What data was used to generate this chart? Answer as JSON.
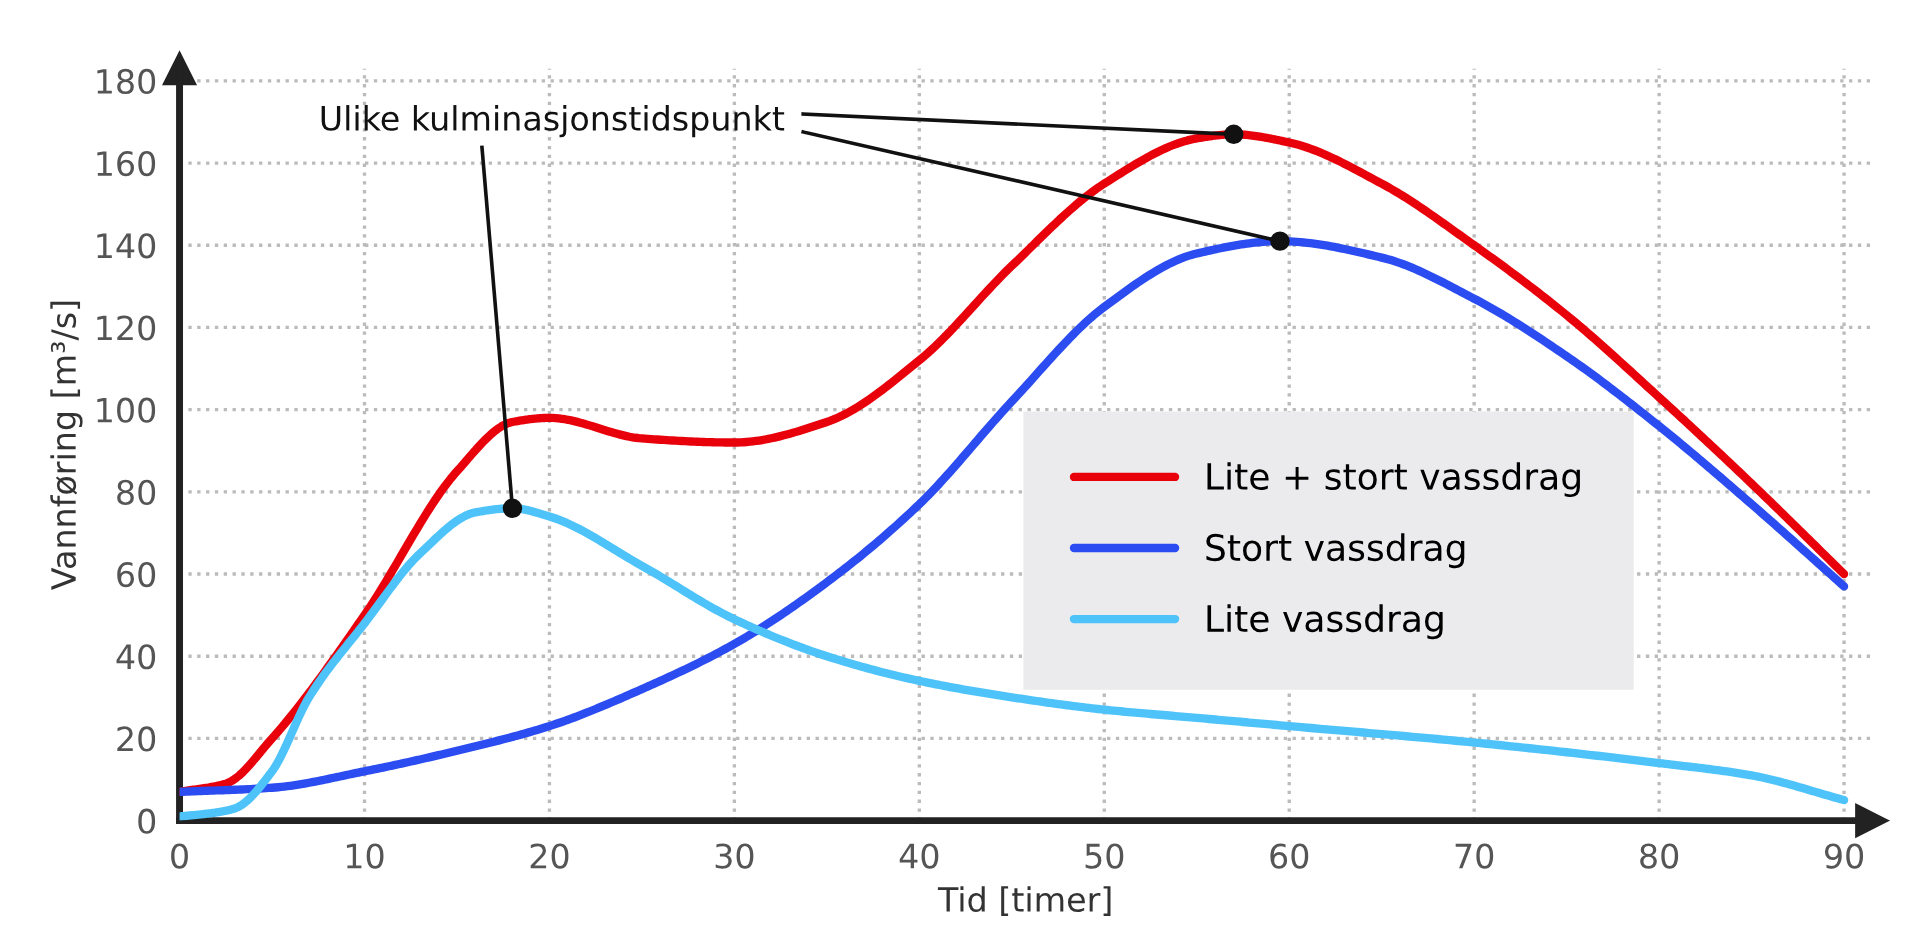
{
  "chart_data": {
    "type": "line",
    "xlabel": "Tid [timer]",
    "ylabel": "Vannføring [m³/s]",
    "xlim": [
      0,
      91.5
    ],
    "ylim": [
      0,
      183
    ],
    "xticks": [
      0,
      10,
      20,
      30,
      40,
      50,
      60,
      70,
      80,
      90
    ],
    "yticks": [
      0,
      20,
      40,
      60,
      80,
      100,
      120,
      140,
      160,
      180
    ],
    "grid": true,
    "legend": "right",
    "line_style": "solid",
    "marker": "none",
    "annotations": [
      {
        "text": "Ulike kulminasjonstidspunkt",
        "x": 18,
        "y": 76
      }
    ],
    "series": [
      {
        "name": "Lite + stort vassdrag",
        "color": "#e8000b",
        "x": [
          0,
          2.5,
          5,
          10,
          15,
          18,
          20,
          25,
          30,
          35,
          40,
          45,
          50,
          55,
          57,
          60,
          65,
          70,
          75,
          80,
          85,
          90
        ],
        "values": [
          7,
          9,
          20,
          50,
          85,
          97,
          98,
          93,
          92,
          97,
          112,
          135,
          155,
          166,
          167,
          165,
          155,
          140,
          123,
          103,
          82,
          60
        ]
      },
      {
        "name": "Stort vassdrag",
        "color": "#2b4cf0",
        "x": [
          0,
          5,
          10,
          15,
          20,
          25,
          30,
          35,
          40,
          45,
          50,
          55,
          59.5,
          65,
          70,
          75,
          80,
          85,
          90
        ],
        "values": [
          7,
          8,
          12,
          17,
          23,
          32,
          43,
          58,
          77,
          102,
          125,
          138,
          141,
          137,
          127,
          113,
          96,
          77,
          57
        ]
      },
      {
        "name": "Lite vassdrag",
        "color": "#4dc3fa",
        "x": [
          0,
          2,
          3,
          5,
          7,
          10,
          13,
          16,
          18,
          20,
          25,
          30,
          35,
          40,
          45,
          50,
          55,
          60,
          70,
          80,
          85,
          90
        ],
        "values": [
          1,
          2,
          3,
          12,
          30,
          48,
          65,
          75,
          76,
          74,
          62,
          49,
          40,
          34,
          30,
          27,
          25,
          23,
          19,
          14,
          11,
          5
        ]
      }
    ]
  }
}
